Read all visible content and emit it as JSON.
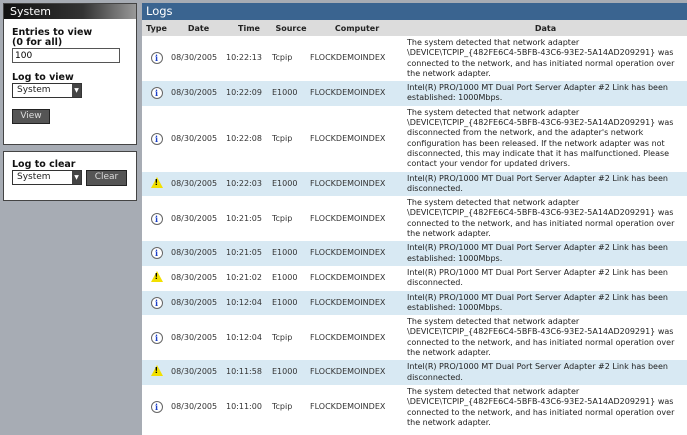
{
  "sidebar": {
    "title": "System",
    "entries_label": "Entries to view",
    "entries_hint": "(0 for all)",
    "entries_value": "100",
    "log_view_label": "Log to view",
    "log_view_value": "System",
    "view_button": "View",
    "log_clear_label": "Log to clear",
    "log_clear_value": "System",
    "clear_button": "Clear"
  },
  "main": {
    "title": "Logs",
    "columns": [
      "Type",
      "Date",
      "Time",
      "Source",
      "Computer",
      "Data"
    ],
    "rows": [
      {
        "type": "info",
        "date": "08/30/2005",
        "time": "10:22:13",
        "source": "Tcpip",
        "computer": "FLOCKDEMOINDEX",
        "data": "The system detected that network adapter \\DEVICE\\TCPIP_{482FE6C4-5BFB-43C6-93E2-5A14AD209291} was connected to the network, and has initiated normal operation over the network adapter."
      },
      {
        "type": "info",
        "date": "08/30/2005",
        "time": "10:22:09",
        "source": "E1000",
        "computer": "FLOCKDEMOINDEX",
        "data": "Intel(R) PRO/1000 MT Dual Port Server Adapter #2 Link has been established: 1000Mbps."
      },
      {
        "type": "info",
        "date": "08/30/2005",
        "time": "10:22:08",
        "source": "Tcpip",
        "computer": "FLOCKDEMOINDEX",
        "data": "The system detected that network adapter \\DEVICE\\TCPIP_{482FE6C4-5BFB-43C6-93E2-5A14AD209291} was disconnected from the network, and the adapter's network configuration has been released. If the network adapter was not disconnected, this may indicate that it has malfunctioned. Please contact your vendor for updated drivers."
      },
      {
        "type": "warning",
        "date": "08/30/2005",
        "time": "10:22:03",
        "source": "E1000",
        "computer": "FLOCKDEMOINDEX",
        "data": "Intel(R) PRO/1000 MT Dual Port Server Adapter #2 Link has been disconnected."
      },
      {
        "type": "info",
        "date": "08/30/2005",
        "time": "10:21:05",
        "source": "Tcpip",
        "computer": "FLOCKDEMOINDEX",
        "data": "The system detected that network adapter \\DEVICE\\TCPIP_{482FE6C4-5BFB-43C6-93E2-5A14AD209291} was connected to the network, and has initiated normal operation over the network adapter."
      },
      {
        "type": "info",
        "date": "08/30/2005",
        "time": "10:21:05",
        "source": "E1000",
        "computer": "FLOCKDEMOINDEX",
        "data": "Intel(R) PRO/1000 MT Dual Port Server Adapter #2 Link has been established: 1000Mbps."
      },
      {
        "type": "warning",
        "date": "08/30/2005",
        "time": "10:21:02",
        "source": "E1000",
        "computer": "FLOCKDEMOINDEX",
        "data": "Intel(R) PRO/1000 MT Dual Port Server Adapter #2 Link has been disconnected."
      },
      {
        "type": "info",
        "date": "08/30/2005",
        "time": "10:12:04",
        "source": "E1000",
        "computer": "FLOCKDEMOINDEX",
        "data": "Intel(R) PRO/1000 MT Dual Port Server Adapter #2 Link has been established: 1000Mbps."
      },
      {
        "type": "info",
        "date": "08/30/2005",
        "time": "10:12:04",
        "source": "Tcpip",
        "computer": "FLOCKDEMOINDEX",
        "data": "The system detected that network adapter \\DEVICE\\TCPIP_{482FE6C4-5BFB-43C6-93E2-5A14AD209291} was connected to the network, and has initiated normal operation over the network adapter."
      },
      {
        "type": "warning",
        "date": "08/30/2005",
        "time": "10:11:58",
        "source": "E1000",
        "computer": "FLOCKDEMOINDEX",
        "data": "Intel(R) PRO/1000 MT Dual Port Server Adapter #2 Link has been disconnected."
      },
      {
        "type": "info",
        "date": "08/30/2005",
        "time": "10:11:00",
        "source": "Tcpip",
        "computer": "FLOCKDEMOINDEX",
        "data": "The system detected that network adapter \\DEVICE\\TCPIP_{482FE6C4-5BFB-43C6-93E2-5A14AD209291} was connected to the network, and has initiated normal operation over the network adapter."
      }
    ]
  },
  "colors": {
    "header_blue": "#3a6490",
    "row_alt": "#d8e9f3",
    "warning": "#f2e000",
    "info": "#1a3ec8"
  }
}
